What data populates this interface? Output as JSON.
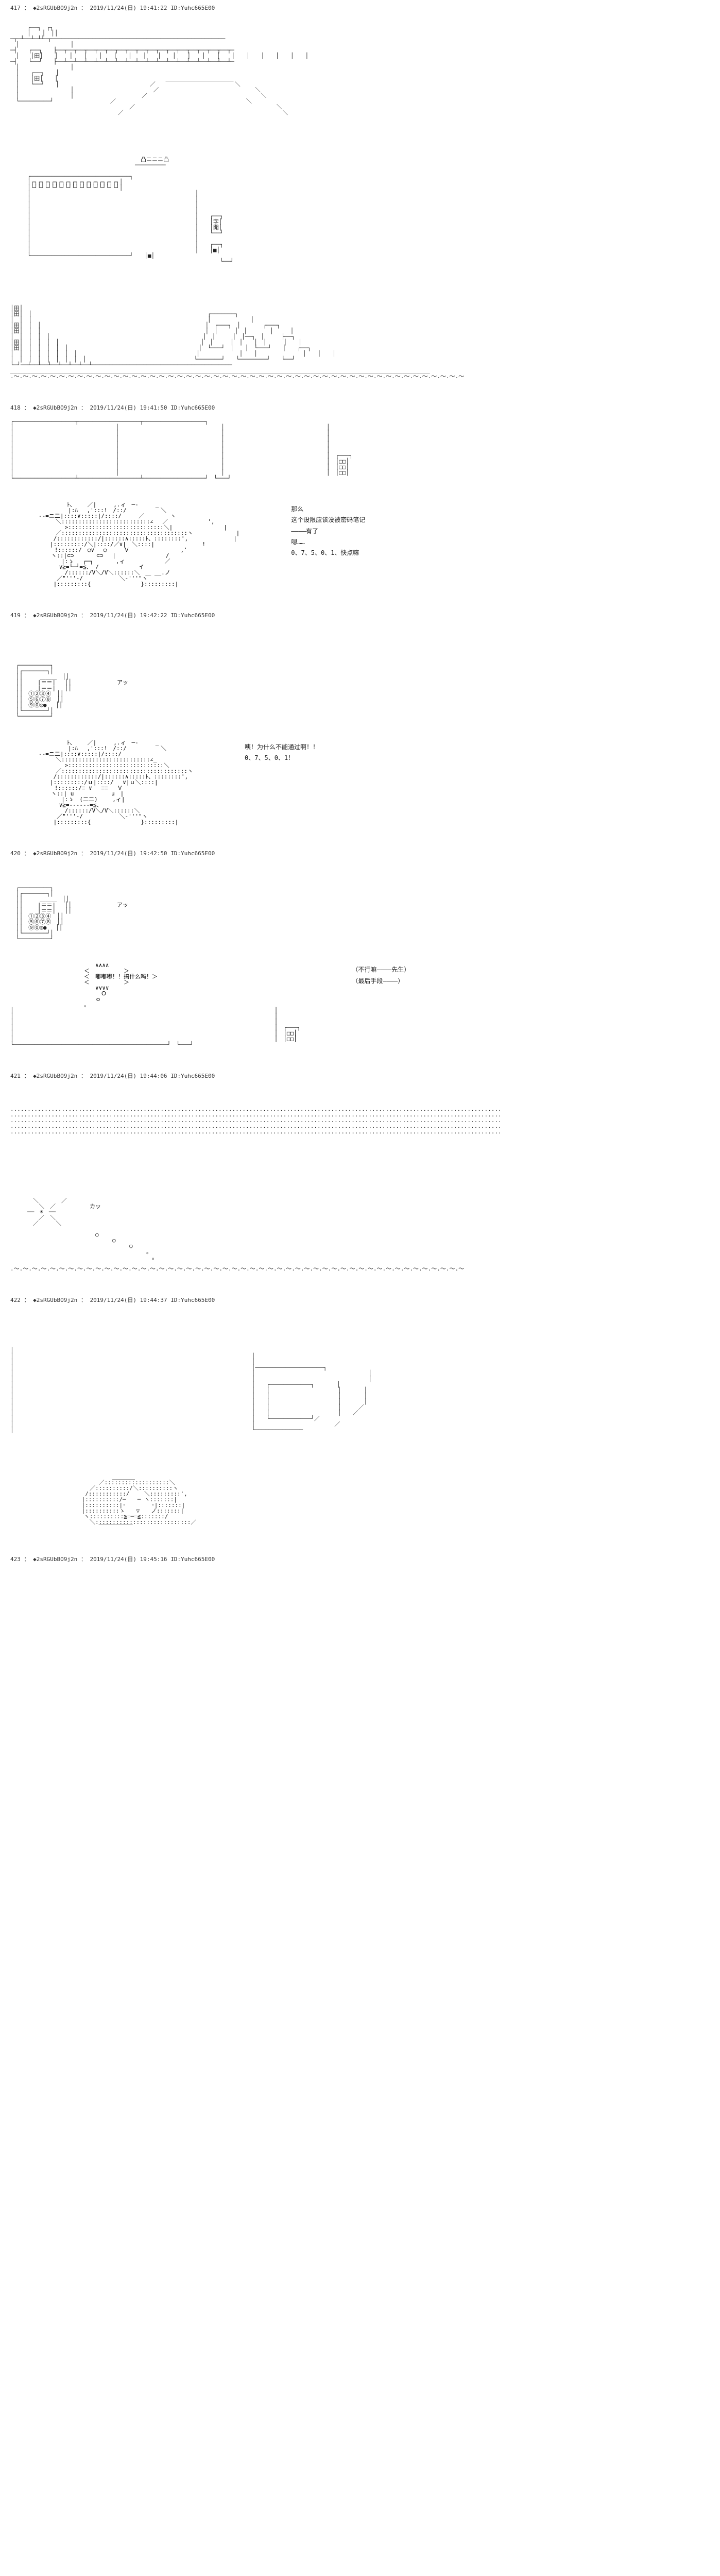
{
  "posts": [
    {
      "id": "417",
      "trip": "◆2sRGUbBO9j2n",
      "date": "2019/11/24(日)",
      "time": "19:41:22",
      "uid": "ID:Yuhc665E00",
      "dialogue": []
    },
    {
      "id": "418",
      "trip": "◆2sRGUbBO9j2n",
      "date": "2019/11/24(日)",
      "time": "19:41:50",
      "uid": "ID:Yuhc665E00",
      "dialogue": [
        {
          "text": "那么"
        },
        {
          "text": "这个设限应该没被密码笔记"
        },
        {
          "text": ""
        },
        {
          "text": "————有了"
        },
        {
          "text": ""
        },
        {
          "text": "嗯……"
        },
        {
          "text": "0、7、5、0、1、快点嘛"
        }
      ]
    },
    {
      "id": "419",
      "trip": "◆2sRGUbBO9j2n",
      "date": "2019/11/24(日)",
      "time": "19:42:22",
      "uid": "ID:Yuhc665E00",
      "dialogue": [
        {
          "text": "咦！为什么不能通过啊！！"
        },
        {
          "text": ""
        },
        {
          "text": "0、7、5、0、1！"
        }
      ]
    },
    {
      "id": "420",
      "trip": "◆2sRGUbBO9j2n",
      "date": "2019/11/24(日)",
      "time": "19:42:50",
      "uid": "ID:Yuhc665E00",
      "dialogue": [
        {
          "text": "嘟嘟嘟！！搞什么吗！"
        },
        {
          "text": ""
        },
        {
          "text": "（不行嘛————先生）"
        },
        {
          "text": ""
        },
        {
          "text": "（最后手段————）"
        }
      ]
    },
    {
      "id": "421",
      "trip": "◆2sRGUbBO9j2n",
      "date": "2019/11/24(日)",
      "time": "19:44:06",
      "uid": "ID:Yuhc665E00",
      "dialogue": []
    },
    {
      "id": "422",
      "trip": "◆2sRGUbBO9j2n",
      "date": "2019/11/24(日)",
      "time": "19:44:37",
      "uid": "ID:Yuhc665E00",
      "dialogue": []
    },
    {
      "id": "423",
      "trip": "◆2sRGUbBO9j2n",
      "date": "2019/11/24(日)",
      "time": "19:45:16",
      "uid": "ID:Yuhc665E00",
      "dialogue": []
    }
  ],
  "aa": {
    "building_exterior": "　　　　　　　　　　　　　　　　　　　　　　　　　　　　　　　　　　　　　　　　　　　　　　　　　　　　　　　　　　　　　　　　　　\n　　　┌──┐　┌┐　　　　　　　　　　　　　　　　　　　　　　　　　　　　　　　　　　　　　　　　　　　　　　　　　　　　　　　　\n　　　│　　│　││　　　　　　　　　　　　　　　　　　　　　　　　　　　　　　　　　　　　　　　　　　　　　　　　　　　　　　　　\n─┬─┴──┴─┴┴─┬───────────────────────────────────────────────────\n　│　　　　　　　　　│　　　　　　　　　　　　　　　　　　　　　　　　　　　　　　　　　　　　　　　　　　　　　　　　　　　　　　\n─┤　　┌──┐　　├──┬──┬──┬──┬──┬──┬──┬──┬──┬──┬──┬──┬──┬──┬──┬──┬──┬─\n　│　　│田│　　│　　│　　│　　│　　│　　│　　│　　│　　│　　│　　│　　│　　│　　│　　│　　│　　│　　│　\n─┤　　└──┘　　├──┴──┴──┴──┴──┴──┴──┴──┴──┴──┴──┴──┴──┴──┴──┴──┴──┴─\n　│　　　　　　　　　│　　　　　　　　　　　　　　　　　　　　　　　　　　　　　　　　　　　　　　　　　　　　　　　　　　　　　　\n　│　　┌──┐　　│　　　　　　　　　　　　　　　　　　　　　　　　　　　　　　　　　　　　　　　　　　　　　　　　　　　　　　\n　│　　│田│　　│　　　　　　　　　　　　　　　　　　　＿＿＿＿＿＿＿＿＿＿＿＿　　　　　　　　　　　　　　　　　　　　　　　\n　│　　└──┘　　│　　　　　　　　　　　　　　　　／　　　　　　　　　　　　　　＼　　　　　　　　　　　　　　　　　　　　　\n　│　　　　　　　　　│　　　　　　　　　　　　　　／　　　　　　　　　　　　　　　　　＼　　　　　　　　　　　　　　　　　　　　\n　│　　　　　　　　　│　　　　　　　　　　　　／　　　　　　　　　　　　　　　　　　　　＼　　　　　　　　　　　　　　　　　　　\n　└─────────┘　　　　　　　　　　／　　　　　　　　　　　　　　　　　　　　　　　＼　　　　　　　　　　　　　　　　　　\n　　　　　　　　　　　　　　　　　　　　　／　　　　　　　　　　　　　　　　　　　　　　　　　＼　　　　　　　　　　　　　　　　　\n　　　　　　　　　　　　　　　　　　　／　　　　　　　　　　　　　　　　　　　　　　　　　　　　＼",
    "gate_front": "　　　　　　　　　　　　　　　　　　　　　　　凸ニニニ凸\n　　　　　　　　　　　　　　　　　　　　　　─────────\n\n　　　┌─────────────────────────────┐\n　　　│┌┐┌┐┌┐┌┐┌┐┌┐┌┐┌┐┌┐┌┐┌┐┌┐┌┐│\n　　　│└┘└┘└┘└┘└┘└┘└┘└┘└┘└┘└┘└┘└┘│\n　　　│　　　　　　　　　　　　　　　　　　　　　　　　　　　　　│\n　　　│　　　　　　　　　　　　　　　　　　　　　　　　　　　　　│\n　　　│　　　　　　　　　　　　　　　　　　　　　　　　　　　　　│\n　　　│　　　　　　　　　　　　　　　　　　　　　　　　　　　　　│\n　　　│　　　　　　　　　　　　　　　　　　　　　　　　　　　　　│　　┌──┐\n　　　│　　　　　　　　　　　　　　　　　　　　　　　　　　　　　│　　│字│\n　　　│　　　　　　　　　　　　　　　　　　　　　　　　　　　　　│　　│開│\n　　　│　　　　　　　　　　　　　　　　　　　　　　　　　　　　　│　　└──┘\n　　　│　　　　　　　　　　　　　　　　　　　　　　　　　　　　　│\n　　　│　　　　　　　　　　　　　　　　　　　　　　　　　　　　　│　　┌──┐\n　　　│　　　　　　　　　　　　　　　　　　　　　　　　　　　　　│　　│■│\n　　　└─────────────────────────────┘　　│■│\n　　　　　　　　　　　　　　　　　　　　　　　　　　　　　　　　　　　　　└──┘",
    "wide_scene": "│田│　　　　　　　　　　　　　　　　　　　　　　　　　　　　　　　　　　　　　　　　　　　　　　　　　　　　　　　　　　　　　　　\n│田│　│　　　　　　　　　　　　　　　　　　　　　　　　　　　　　　　┌───────┐　　　　　　　　　　　　　　　　　　　　\n│　│　│　　　　　　　　　　　　　　　　　　　　　　　　　　　　　　　│　　　　　　　│　　　　　　　　　　　　　　　　　　　　\n│田│　│　│　　　　　　　　　　　　　　　　　　　　　　　　　　　　　│　┌───┐　│　　　　┌───┐　　　　　　　　　　　\n│田│　│　│　　　　　　　　　　　　　　　　　　　　　　　　　　　　　│　│　　　│　│　　　　│　　　│　　　　　　　　　　　\n│　│　│　│　│　　　　　　　　　　　　　　　　　　　　　　　　　　　│　│　　　│　│──┐　│　　　├──┐　　　　　　　　\n│田│　│　│　│　│　　　　　　　　　　　　　　　　　　　　　　　　　│　│　　　│　│　　│　│　　　│　　│　　　　　　　　\n│田│　│　│　│　│　│　　　　　　　　　　　　　　　　　　　　　　　│　└───┘　│　　│　└───┘　　│　　┌──┐　　\n│　│　│　│　│　│　│　│　　　　　　　　　　　　　　　　　　　　　│　　　　　　　│　　│　　　　　　　　│　　│　　│　　\n│　│　│　│　│　│　│　│　│　　　　　　　　　　　　　　　　　　　└───────┘　　└────────┘　　└──┘　　\n└─┘──┴──┴──┴──┴──┴──┴──┴─────────────────────────────────────────\n___________________________________________________________________________________________________________________________\n.〜.〜.〜.〜.〜.〜.〜.〜.〜.〜.〜.〜.〜.〜.〜.〜.〜.〜.〜.〜.〜.〜.〜.〜.〜.〜.〜.〜.〜.〜.〜.〜.〜.〜.〜.〜.〜.〜.〜.〜.〜.〜.〜.〜.〜.〜.〜.〜.〜.〜",
    "panel_keypad": "┌──────────────────┬──────────────────┬──────────────────┐\n│　　　　　　　　　　　　　　　　　　│　　　　　　　　　　　　　　　　　　│　　　　　　　　　　　　　　　　　　│\n│　　　　　　　　　　　　　　　　　　│　　　　　　　　　　　　　　　　　　│　　　　　　　　　　　　　　　　　　│\n│　　　　　　　　　　　　　　　　　　│　　　　　　　　　　　　　　　　　　│　　　　　　　　　　　　　　　　　　│\n│　　　　　　　　　　　　　　　　　　│　　　　　　　　　　　　　　　　　　│　　　　　　　　　　　　　　　　　　│\n│　　　　　　　　　　　　　　　　　　│　　　　　　　　　　　　　　　　　　│　　　　　　　　　　　　　　　　　　│\n│　　　　　　　　　　　　　　　　　　│　　　　　　　　　　　　　　　　　　│　　　　　　　　　　　　　　　　　　│　┌───┐\n│　　　　　　　　　　　　　　　　　　│　　　　　　　　　　　　　　　　　　│　　　　　　　　　　　　　　　　　　│　│□□│\n│　　　　　　　　　　　　　　　　　　│　　　　　　　　　　　　　　　　　　│　　　　　　　　　　　　　　　　　　│　│□□│\n│　　　　　　　　　　　　　　　　　　│　　　　　　　　　　　　　　　　　　│　　　　　　　　　　　　　　　　　　│　│□□│\n└──────────────────┴──────────────────┴──────────────────┘　└───┘",
    "character_1": "　　　　　　　　　　ﾄ、　　 ／|　　　,.ィ　─-　　　_\n　　　　　　　　 　 |:ﾊ　 ,':::!　/::/　　　　　　＼\n　　　　　-‐=ニ二|::::∨:::::|/::::/　　　／　　　　 ヽ\n　　　　　　　　＼::::::::::::::::::::::::::∠　 ／　　　　　　　',\n　　　　　　　　　 >::::::::::::::::::::::::::::＼|　　 　 　 　 　 |\n　　　　　　　　／:::::::::::::::::::::::::::::::::::::ヽ　　　　　　　 |\n　　　　　　　 /::::::::::::/|::::::∧:::::ﾄ、::::::::',　 　 　 　 　 |\n　　　　　　　|:::::::::/＼|::::/／∨|　＼::::|　　　 　 　 　 !\n　　　 　 　 　!::::::/　○∨　 ○　　　Ｖ　　 　 　 　 　 ,'\n　　　　　 　 ヽ::|⊂⊃　　　　⊂⊃　 |　　　　　 　 　 /\n　　 　 　 　 　 |:ゝ　 ┌─┐　　　　,ィ　　　　　　　／\n　　　　　　　　 ∨≧=└─┘=≦、 /　　　　　　　イ\n　　　　　　　　　 /::::::/V＼/V＼::::::＼　＿ __.ノ\n　　　　　　 　 ／\"'''‐/　 　 　 　 ＼‐'''\"ヽ\n　　　　　　　 |:::::::::{　　　　　 　 　 }:::::::::|",
    "keypad_closeup": "　┌─────────┐\n　│┌───────┐│\n　││　　　＿＿＿　││\n　││　　 |＝＝|　 ││　　　　　　　　アッ\n　││　　 |＝＝|　 ││\n　││　①②③④　││\n　││　⑤⑥⑦⑧　││\n　││　⑨⓪◎● 　││\n　│└───────┘│\n　└─────────┘",
    "character_2": "　　　　　　　　　　ﾄ、　　 ／|　　　,.ィ　─-　　　_\n　　　　　　　　 　 |:ﾊ　 ,':::!　/::/　　　　　　＼\n　　　　　-‐=ニ二|::::∨:::::|/::::/\n　　　　　　　　＼::::::::::::::::::::::::::∠_\n　　　　　　　　　 >::::::::::::::::::::::::::::＼\n　　　　　　　　／:::::::::::::::::::::::::::::::::::::ヽ\n　　　　　　　 /::::::::::::/|::::::∧:::::ﾄ、::::::::',\n　　　　　　　|:::::::::/ｕ|::::/　 ∨|ｕ＼::::|\n　　　 　 　 　!::::::/≡ ∨　 ≡≡　 Ｖ\n　　　　　 　 ヽ::| u　　　　　　 u　|\n　　 　 　 　 　 |:ゝ　(二二)　　 ,ィ|\n　　　　　　　　 ∨≧=‐----‐=≦、\n　　　　　　　　　 /::::::/V＼/V＼::::::＼\n　　　　　　 　 ／\"'''‐/　 　 　 　 ＼‐'''\"ヽ\n　　　　　　　 |:::::::::{　　　　　 　 　 }:::::::::|",
    "character_3": "　　　　　　　　　　　　　　　∧∧∧∧\n　　　　　　　　　　　　　＜　　　　　　＞\n　　　　　　　　　　　　　＜　嘟嘟嘟！！搞什么吗！＞\n　　　　　　　　　　　　　＜　　　　　　＞\n　　　　　　　　　　　　　　　∨∨∨∨\n　　　　　　　　　　　　　　　　Ｏ\n　　　　　　　　　　　　　　　ｏ\n　　　　　　　　　　　　　。\n│　　　　　　　　　　　　　　　　　　　　　　　　　　　　　　　　　　　　　　　　　　　　　　│\n│　　　　　　　　　　　　　　　　　　　　　　　　　　　　　　　　　　　　　　　　　　　　　　│\n│　　　　　　　　　　　　　　　　　　　　　　　　　　　　　　　　　　　　　　　　　　　　　　│\n│　　　　　　　　　　　　　　　　　　　　　　　　　　　　　　　　　　　　　　　　　　　　　　│　┌───┐\n│　　　　　　　　　　　　　　　　　　　　　　　　　　　　　　　　　　　　　　　　　　　　　　│　│□□│\n│　　　　　　　　　　　　　　　　　　　　　　　　　　　　　　　　　　　　　　　　　　　　　　│　│□□│\n└─────────────────────────────────────────────┘　└───┘",
    "dotted_lines": "················································································································································\n················································································································································\n················································································································································\n················································································································································\n················································································································································",
    "sky_scene": "　　　　＼　　　　／\n　　　　　＼　／　　　　　　カッ\n　　　──　☀　──\n　　　　　／　＼\n　　　　／　　　＼\n\n　　　　　　　　　　　　　　　○\n　　　　　　　　　　　　　　　　　　○\n　　　　　　　　　　　　　　　　　　　　　○\n　　　　　　　　　　　　　　　　　　　　　　　　。\n　　　　　　　　　　　　　　　　　　　　　　　　　。\n\n.〜.〜.〜.〜.〜.〜.〜.〜.〜.〜.〜.〜.〜.〜.〜.〜.〜.〜.〜.〜.〜.〜.〜.〜.〜.〜.〜.〜.〜.〜.〜.〜.〜.〜.〜.〜.〜.〜.〜.〜.〜.〜.〜.〜.〜.〜.〜.〜.〜.〜",
    "room_interior": "│　　　　　　　　　　　　　　　　　　　　　　　　　　　　　　　　　　　　　　　　　　　　　　　　　　　　　　　　　　　　　　　　　　\n│　　　　　　　　　　　　　　　　　　　　　　　　　　　　　　　　　　　　　　　　　　│　　　　　　　　　　　　　　　　　　　　　　　\n│　　　　　　　　　　　　　　　　　　　　　　　　　　　　　　　　　　　　　　　　　　│　　　　　　　　　　　　　　　　　　　　　　　\n│　　　　　　　　　　　　　　　　　　　　　　　　　　　　　　　　　　　　　　　　　　│────────────────────┐　　\n│　　　　　　　　　　　　　　　　　　　　　　　　　　　　　　　　　　　　　　　　　　│　　　　　　　　　　　　　　　　　　　　│　　\n│　　　　　　　　　　　　　　　　　　　　　　　　　　　　　　　　　　　　　　　　　　│　　　　　　　　　　　　　　　　　　　　│　　\n│　　　　　　　　　　　　　　　　　　　　　　　　　　　　　　　　　　　　　　　　　　│　　┌────────────┐　　　　│　　\n│　　　　　　　　　　　　　　　　　　　　　　　　　　　　　　　　　　　　　　　　　　│　　│　　　　　　　　　　　　│　　　　│　　\n│　　　　　　　　　　　　　　　　　　　　　　　　　　　　　　　　　　　　　　　　　　│　　│　　　　　　　　　　　　│　　　　│　　\n│　　　　　　　　　　　　　　　　　　　　　　　　　　　　　　　　　　　　　　　　　　│　　│　　　　　　　　　　　　│　　　　│　　\n│　　　　　　　　　　　　　　　　　　　　　　　　　　　　　　　　　　　　　　　　　　│　　│　　　　　　　　　　　　│　　　／　　　\n│　　　　　　　　　　　　　　　　　　　　　　　　　　　　　　　　　　　　　　　　　　│　　│　　　　　　　　　　　　│　　／　　　　\n│　　　　　　　　　　　　　　　　　　　　　　　　　　　　　　　　　　　　　　　　　　│　　└────────────┘／　　　　　　\n│　　　　　　　　　　　　　　　　　　　　　　　　　　　　　　　　　　　　　　　　　　│　　　　　　　　　　　　　　／　　　　　　　　\n│　　　　　　　　　　　　　　　　　　　　　　　　　　　　　　　　　　　　　　　　　　└──────────────　　　　　　　　　",
    "character_sleeping": "　　　　　　　　　　　　　　　　　　＿＿＿＿\n　　　　　　　　　　　　　　　 ／:::::::::::::::::::＼\n　　　　　　　　　　　　　　／::::::::::/＼::::::::::ヽ\n　　　　　　　　　　　 　 /:::::::::::/　　 ＼:::::::::',\n　　　　　　　　　　　　 |::::::::::/─　　─ ヽ:::::::|\n　　　　　　　　　　　　 |::::::::::|･　　　　 ･|:::::::|\n　　　　　　　　　　　　 |::::::::::ゝ　　▽　　ノ:::::::|\n　　　　　　　　　　　　　ヽ::::::::::≧=─=≦:::::::/\n　　　　　　　　　　　　　　＼::::::::::::::::::::::::::::／\n　　　　　　　　　　　　　　　 ￣￣￣￣￣￣"
  }
}
